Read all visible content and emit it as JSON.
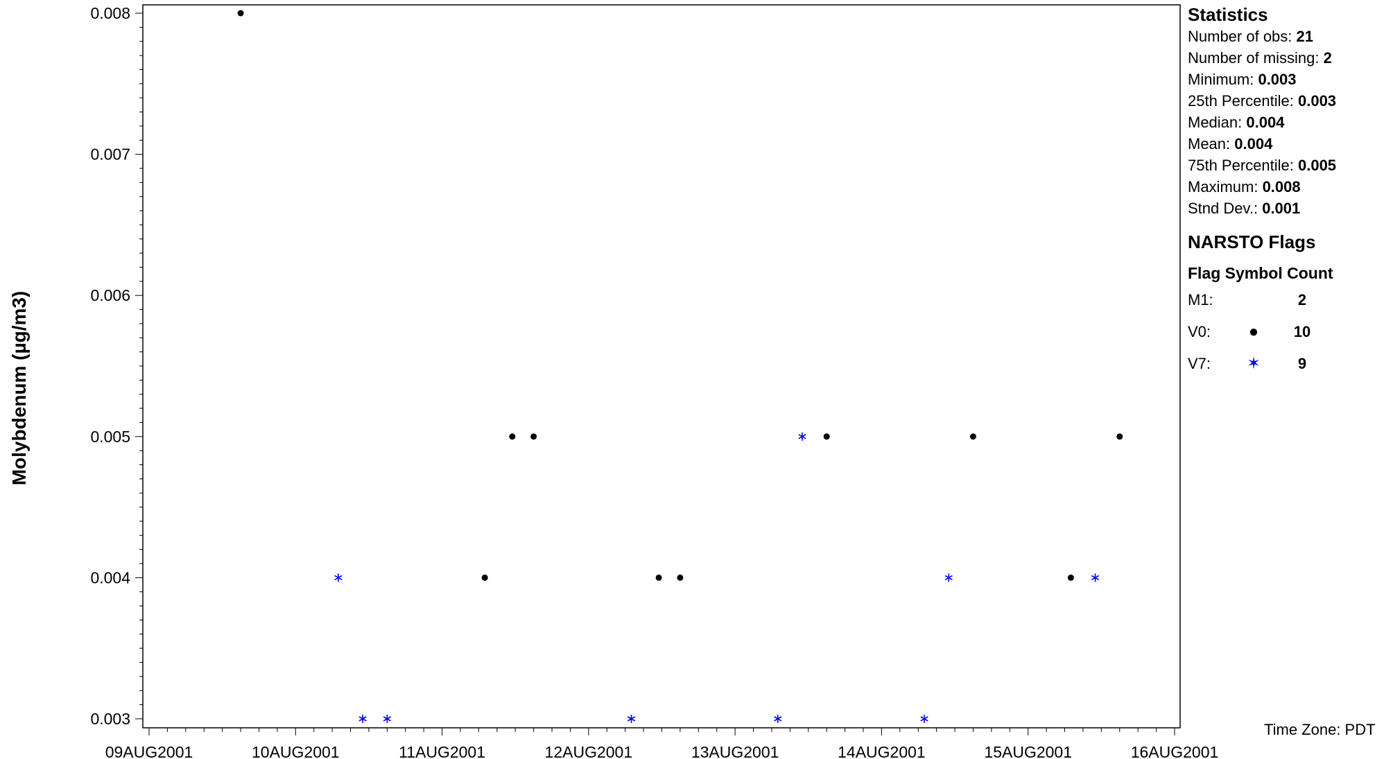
{
  "chart_data": {
    "type": "scatter",
    "title": "",
    "xlabel": "",
    "ylabel": "Molybdenum (µg/m3)",
    "xlim": [
      "09AUG2001",
      "16AUG2001"
    ],
    "x_tick_labels": [
      "09AUG2001",
      "10AUG2001",
      "11AUG2001",
      "12AUG2001",
      "13AUG2001",
      "14AUG2001",
      "15AUG2001",
      "16AUG2001"
    ],
    "ylim": [
      0.003,
      0.008
    ],
    "y_tick_labels": [
      "0.003",
      "0.004",
      "0.005",
      "0.006",
      "0.007",
      "0.008"
    ],
    "grid": false,
    "series": [
      {
        "name": "V0",
        "marker": "dot",
        "color": "#000000",
        "points": [
          {
            "x": "09AUG2001 15:00",
            "y": 0.008
          },
          {
            "x": "11AUG2001 07:00",
            "y": 0.004
          },
          {
            "x": "11AUG2001 11:30",
            "y": 0.005
          },
          {
            "x": "11AUG2001 15:00",
            "y": 0.005
          },
          {
            "x": "12AUG2001 11:30",
            "y": 0.004
          },
          {
            "x": "12AUG2001 15:00",
            "y": 0.004
          },
          {
            "x": "13AUG2001 15:00",
            "y": 0.005
          },
          {
            "x": "14AUG2001 15:00",
            "y": 0.005
          },
          {
            "x": "15AUG2001 07:00",
            "y": 0.004
          },
          {
            "x": "15AUG2001 15:00",
            "y": 0.005
          }
        ]
      },
      {
        "name": "V7",
        "marker": "star",
        "color": "#0000ff",
        "points": [
          {
            "x": "10AUG2001 07:00",
            "y": 0.004
          },
          {
            "x": "10AUG2001 11:00",
            "y": 0.003
          },
          {
            "x": "10AUG2001 15:00",
            "y": 0.003
          },
          {
            "x": "12AUG2001 07:00",
            "y": 0.003
          },
          {
            "x": "13AUG2001 07:00",
            "y": 0.003
          },
          {
            "x": "13AUG2001 11:00",
            "y": 0.005
          },
          {
            "x": "14AUG2001 07:00",
            "y": 0.003
          },
          {
            "x": "14AUG2001 11:00",
            "y": 0.004
          },
          {
            "x": "15AUG2001 11:00",
            "y": 0.004
          }
        ]
      }
    ]
  },
  "statistics": {
    "heading": "Statistics",
    "rows": [
      {
        "label": "Number of obs: ",
        "value": "21"
      },
      {
        "label": "Number of missing: ",
        "value": "2"
      },
      {
        "label": "Minimum: ",
        "value": "0.003"
      },
      {
        "label": "25th Percentile: ",
        "value": "0.003"
      },
      {
        "label": "Median: ",
        "value": "0.004"
      },
      {
        "label": "Mean: ",
        "value": "0.004"
      },
      {
        "label": "75th Percentile: ",
        "value": "0.005"
      },
      {
        "label": "Maximum: ",
        "value": "0.008"
      },
      {
        "label": "Stnd Dev.: ",
        "value": "0.001"
      }
    ]
  },
  "flags": {
    "heading": "NARSTO Flags",
    "column_header": "Flag Symbol Count",
    "rows": [
      {
        "code": "M1:",
        "symbol": "",
        "count": "2"
      },
      {
        "code": "V0:",
        "symbol": "●",
        "symbol_color": "#000000",
        "count": "10"
      },
      {
        "code": "V7:",
        "symbol": "✶",
        "symbol_color": "#0000ff",
        "count": "9"
      }
    ]
  },
  "time_zone": "Time Zone: PDT"
}
